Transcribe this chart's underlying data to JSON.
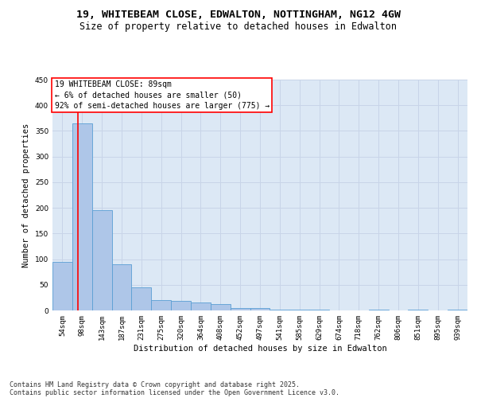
{
  "title_line1": "19, WHITEBEAM CLOSE, EDWALTON, NOTTINGHAM, NG12 4GW",
  "title_line2": "Size of property relative to detached houses in Edwalton",
  "xlabel": "Distribution of detached houses by size in Edwalton",
  "ylabel": "Number of detached properties",
  "categories": [
    "54sqm",
    "98sqm",
    "143sqm",
    "187sqm",
    "231sqm",
    "275sqm",
    "320sqm",
    "364sqm",
    "408sqm",
    "452sqm",
    "497sqm",
    "541sqm",
    "585sqm",
    "629sqm",
    "674sqm",
    "718sqm",
    "762sqm",
    "806sqm",
    "851sqm",
    "895sqm",
    "939sqm"
  ],
  "values": [
    95,
    365,
    195,
    90,
    45,
    20,
    18,
    15,
    13,
    5,
    4,
    1,
    1,
    1,
    0,
    0,
    2,
    0,
    2,
    0,
    1
  ],
  "bar_color": "#aec6e8",
  "bar_edge_color": "#5a9fd4",
  "grid_color": "#c8d4e8",
  "bg_color": "#dce8f5",
  "annotation_text": "19 WHITEBEAM CLOSE: 89sqm\n← 6% of detached houses are smaller (50)\n92% of semi-detached houses are larger (775) →",
  "ylim": [
    0,
    450
  ],
  "yticks": [
    0,
    50,
    100,
    150,
    200,
    250,
    300,
    350,
    400,
    450
  ],
  "footer_line1": "Contains HM Land Registry data © Crown copyright and database right 2025.",
  "footer_line2": "Contains public sector information licensed under the Open Government Licence v3.0.",
  "title_fontsize": 9.5,
  "subtitle_fontsize": 8.5,
  "tick_fontsize": 6.5,
  "label_fontsize": 7.5,
  "annotation_fontsize": 7,
  "footer_fontsize": 6
}
